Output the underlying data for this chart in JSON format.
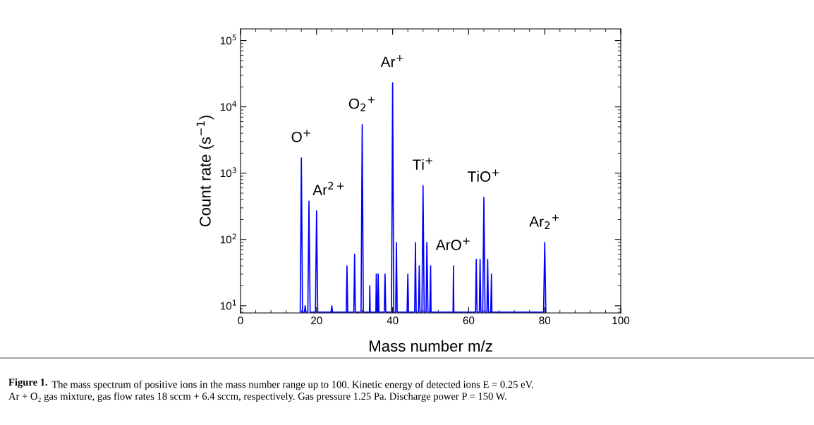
{
  "chart_data": {
    "type": "line",
    "xlabel": "Mass number m/z",
    "ylabel": "Count rate (s$^{−1}$)",
    "log": "y",
    "grid": false,
    "legend": false,
    "marker": "none",
    "line_style": "solid",
    "xlim": [
      0,
      100
    ],
    "xticks": [
      0,
      20,
      40,
      60,
      80,
      100
    ],
    "ylim": [
      7.8,
      150000
    ],
    "yticks": [
      {
        "value": 10,
        "label": "10$^{1}$"
      },
      {
        "value": 100,
        "label": "10$^{2}$"
      },
      {
        "value": 1000,
        "label": "10$^{3}$"
      },
      {
        "value": 10000,
        "label": "10$^{4}$"
      },
      {
        "value": 100000,
        "label": "10$^{5}$"
      }
    ],
    "series": [
      {
        "color": "#0000ff",
        "x": [
          15.7,
          16,
          16.3,
          16.8,
          17,
          17.2,
          17.7,
          18,
          18.3,
          19.7,
          20,
          20.3,
          23.8,
          24,
          24.2,
          27.8,
          28,
          28.2,
          29.8,
          30,
          30.2,
          31.7,
          32,
          32.3,
          33.9,
          34,
          34.1,
          35.6,
          35.7,
          35.9,
          36.1,
          36.2,
          36.4,
          37.8,
          38,
          38.2,
          39.7,
          40,
          40.3,
          40.8,
          41,
          41.2,
          43.8,
          44,
          44.2,
          45.8,
          46,
          46.2,
          46.8,
          47,
          47.2,
          47.7,
          48,
          48.3,
          48.8,
          49,
          49.3,
          49.8,
          50,
          50.1,
          55.9,
          56,
          56.1,
          61.8,
          62,
          62.2,
          62.8,
          63,
          63.2,
          63.7,
          64,
          64.3,
          64.8,
          65,
          65.2,
          65.8,
          66,
          66.1,
          79.7,
          80,
          80.3
        ],
        "values": [
          8,
          1700,
          8,
          8,
          10,
          8,
          8,
          380,
          8,
          8,
          270,
          8,
          8,
          10,
          8,
          8,
          40,
          8,
          8,
          60,
          8,
          8,
          5400,
          8,
          8,
          20,
          8,
          8,
          30,
          8,
          8,
          30,
          8,
          8,
          30,
          8,
          8,
          23000,
          8,
          8,
          90,
          8,
          8,
          30,
          8,
          8,
          90,
          8,
          8,
          40,
          8,
          8,
          650,
          8,
          8,
          90,
          8,
          8,
          40,
          8,
          8,
          40,
          8,
          8,
          50,
          8,
          8,
          50,
          8,
          8,
          430,
          8,
          8,
          50,
          8,
          8,
          30,
          8,
          8,
          90,
          8
        ]
      }
    ],
    "annotations": [
      {
        "text": "O$^{+}$",
        "x": 16,
        "y": 1700
      },
      {
        "text": "Ar$^{2+}$",
        "x": 20,
        "y": 270
      },
      {
        "text": "O$_{2}$$^{+}$",
        "x": 32,
        "y": 5400
      },
      {
        "text": "Ar$^{+}$",
        "x": 40,
        "y": 23000
      },
      {
        "text": "Ti$^{+}$",
        "x": 48,
        "y": 650
      },
      {
        "text": "ArO$^{+}$",
        "x": 56,
        "y": 40
      },
      {
        "text": "TiO$^{+}$",
        "x": 64,
        "y": 430
      },
      {
        "text": "Ar$_{2}$$^{+}$",
        "x": 80,
        "y": 90
      },
      "Figure 1.",
      "The mass spectrum of positive ions in the mass number range up to 100. Kinetic energy of detected ions E = 0.25 eV.",
      "Ar + O₂ gas mixture, gas flow rates 18 sccm + 6.4 sccm, respectively. Gas pressure 1.25 Pa. Discharge power P = 150 W."
    ]
  }
}
